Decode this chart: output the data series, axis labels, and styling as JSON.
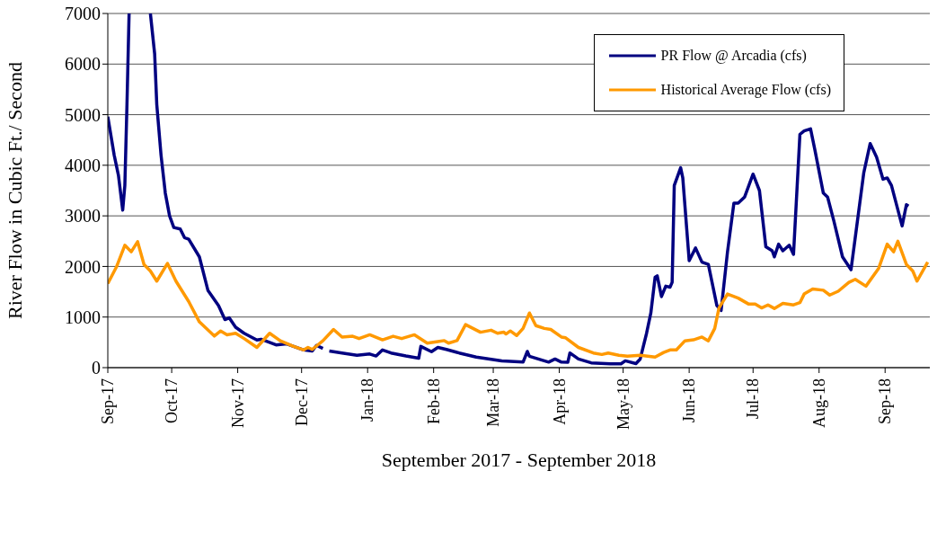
{
  "chart_data": {
    "type": "line",
    "xlabel": "September 2017 - September 2018",
    "ylabel": "River Flow in Cubic Ft./ Second",
    "xlim": [
      "2017-09-01",
      "2018-09-22"
    ],
    "xticks": [
      {
        "value": "2017-09-01",
        "label": "Sep-17"
      },
      {
        "value": "2017-10-01",
        "label": "Oct-17"
      },
      {
        "value": "2017-11-01",
        "label": "Nov-17"
      },
      {
        "value": "2017-12-01",
        "label": "Dec-17"
      },
      {
        "value": "2018-01-01",
        "label": "Jan-18"
      },
      {
        "value": "2018-02-01",
        "label": "Feb-18"
      },
      {
        "value": "2018-03-01",
        "label": "Mar-18"
      },
      {
        "value": "2018-04-01",
        "label": "Apr-18"
      },
      {
        "value": "2018-05-01",
        "label": "May-18"
      },
      {
        "value": "2018-06-01",
        "label": "Jun-18"
      },
      {
        "value": "2018-07-01",
        "label": "Jul-18"
      },
      {
        "value": "2018-08-01",
        "label": "Aug-18"
      },
      {
        "value": "2018-09-01",
        "label": "Sep-18"
      }
    ],
    "ylim": [
      0,
      7000
    ],
    "yticks": [
      0,
      1000,
      2000,
      3000,
      4000,
      5000,
      6000,
      7000
    ],
    "grid": "y",
    "legend": "top right",
    "marker": "none",
    "line_style": "solid",
    "series": [
      {
        "name": "PR Flow @ Arcadia (cfs)",
        "color": "#000080",
        "x": [
          "2017-09-01",
          "2017-09-04",
          "2017-09-06",
          "2017-09-08",
          "2017-09-09",
          "2017-09-10",
          "2017-09-11",
          "2017-09-12",
          "2017-09-21",
          "2017-09-23",
          "2017-09-24",
          "2017-09-26",
          "2017-09-28",
          "2017-09-30",
          "2017-10-02",
          "2017-10-05",
          "2017-10-07",
          "2017-10-09",
          "2017-10-14",
          "2017-10-18",
          "2017-10-23",
          "2017-10-26",
          "2017-10-28",
          "2017-10-31",
          "2017-11-04",
          "2017-11-10",
          "2017-11-12",
          "2017-11-19",
          "2017-11-24",
          "2017-12-02",
          "2017-12-06",
          "2017-12-08",
          "2017-12-11",
          "2017-12-13",
          "2017-12-14",
          "2017-12-20",
          "2017-12-27",
          "2018-01-02",
          "2018-01-05",
          "2018-01-08",
          "2018-01-12",
          "2018-01-19",
          "2018-01-25",
          "2018-01-26",
          "2018-01-31",
          "2018-02-03",
          "2018-02-07",
          "2018-02-13",
          "2018-02-21",
          "2018-03-05",
          "2018-03-15",
          "2018-03-17",
          "2018-03-18",
          "2018-03-27",
          "2018-03-30",
          "2018-04-02",
          "2018-04-05",
          "2018-04-06",
          "2018-04-10",
          "2018-04-16",
          "2018-04-25",
          "2018-04-30",
          "2018-05-02",
          "2018-05-07",
          "2018-05-09",
          "2018-05-12",
          "2018-05-14",
          "2018-05-16",
          "2018-05-17",
          "2018-05-19",
          "2018-05-21",
          "2018-05-23",
          "2018-05-24",
          "2018-05-25",
          "2018-05-28",
          "2018-05-29",
          "2018-06-01",
          "2018-06-04",
          "2018-06-07",
          "2018-06-10",
          "2018-06-14",
          "2018-06-16",
          "2018-06-19",
          "2018-06-22",
          "2018-06-24",
          "2018-06-27",
          "2018-07-01",
          "2018-07-04",
          "2018-07-07",
          "2018-07-10",
          "2018-07-11",
          "2018-07-13",
          "2018-07-15",
          "2018-07-18",
          "2018-07-20",
          "2018-07-23",
          "2018-07-25",
          "2018-07-28",
          "2018-07-30",
          "2018-08-03",
          "2018-08-05",
          "2018-08-08",
          "2018-08-12",
          "2018-08-16",
          "2018-08-22",
          "2018-08-25",
          "2018-08-28",
          "2018-08-31",
          "2018-09-02",
          "2018-09-04",
          "2018-09-09",
          "2018-09-11",
          "2018-09-12"
        ],
        "values": [
          4960,
          4200,
          3800,
          3115,
          3600,
          5200,
          7000,
          null,
          7000,
          6200,
          5200,
          4200,
          3450,
          3000,
          2770,
          2740,
          2570,
          2540,
          2190,
          1530,
          1225,
          950,
          985,
          800,
          680,
          545,
          560,
          450,
          470,
          350,
          330,
          440,
          380,
          null,
          330,
          290,
          245,
          270,
          230,
          350,
          290,
          230,
          185,
          420,
          315,
          400,
          360,
          290,
          210,
          135,
          110,
          320,
          225,
          110,
          170,
          110,
          105,
          290,
          170,
          95,
          75,
          75,
          135,
          80,
          170,
          680,
          1080,
          1785,
          1815,
          1405,
          1610,
          1590,
          1685,
          3600,
          3950,
          3750,
          2115,
          2365,
          2085,
          2040,
          1230,
          1130,
          2290,
          3250,
          3250,
          3370,
          3825,
          3500,
          2390,
          2310,
          2190,
          2440,
          2310,
          2420,
          2240,
          4610,
          4680,
          4720,
          4310,
          3450,
          3370,
          2890,
          2190,
          1935,
          3855,
          4430,
          4160,
          3725,
          3750,
          3600,
          2800,
          3220,
          3195
        ]
      },
      {
        "name": "Historical Average Flow (cfs)",
        "color": "#ff9900",
        "x": [
          "2017-09-01",
          "2017-09-05",
          "2017-09-09",
          "2017-09-12",
          "2017-09-15",
          "2017-09-18",
          "2017-09-21",
          "2017-09-24",
          "2017-09-29",
          "2017-10-03",
          "2017-10-09",
          "2017-10-14",
          "2017-10-21",
          "2017-10-24",
          "2017-10-27",
          "2017-10-31",
          "2017-11-04",
          "2017-11-10",
          "2017-11-16",
          "2017-11-21",
          "2017-11-27",
          "2017-12-02",
          "2017-12-04",
          "2017-12-06",
          "2017-12-11",
          "2017-12-16",
          "2017-12-20",
          "2017-12-25",
          "2017-12-28",
          "2018-01-02",
          "2018-01-08",
          "2018-01-13",
          "2018-01-17",
          "2018-01-23",
          "2018-01-29",
          "2018-02-03",
          "2018-02-06",
          "2018-02-08",
          "2018-02-12",
          "2018-02-16",
          "2018-02-23",
          "2018-02-28",
          "2018-03-03",
          "2018-03-06",
          "2018-03-07",
          "2018-03-09",
          "2018-03-12",
          "2018-03-15",
          "2018-03-18",
          "2018-03-21",
          "2018-03-25",
          "2018-03-28",
          "2018-04-02",
          "2018-04-04",
          "2018-04-10",
          "2018-04-17",
          "2018-04-21",
          "2018-04-24",
          "2018-04-29",
          "2018-05-03",
          "2018-05-09",
          "2018-05-16",
          "2018-05-20",
          "2018-05-23",
          "2018-05-26",
          "2018-05-30",
          "2018-06-03",
          "2018-06-07",
          "2018-06-10",
          "2018-06-13",
          "2018-06-15",
          "2018-06-19",
          "2018-06-24",
          "2018-06-29",
          "2018-07-02",
          "2018-07-05",
          "2018-07-08",
          "2018-07-11",
          "2018-07-15",
          "2018-07-20",
          "2018-07-23",
          "2018-07-25",
          "2018-07-29",
          "2018-08-03",
          "2018-08-06",
          "2018-08-10",
          "2018-08-15",
          "2018-08-18",
          "2018-08-23",
          "2018-08-29",
          "2018-09-02",
          "2018-09-05",
          "2018-09-07",
          "2018-09-11",
          "2018-09-14",
          "2018-09-16",
          "2018-09-21"
        ],
        "values": [
          1660,
          1985,
          2420,
          2290,
          2490,
          2040,
          1910,
          1710,
          2060,
          1710,
          1305,
          905,
          625,
          725,
          650,
          680,
          575,
          400,
          680,
          530,
          425,
          350,
          400,
          360,
          530,
          755,
          605,
          620,
          575,
          650,
          550,
          620,
          575,
          650,
          485,
          515,
          535,
          485,
          535,
          850,
          700,
          740,
          680,
          700,
          665,
          725,
          635,
          775,
          1080,
          830,
          775,
          755,
          605,
          590,
          400,
          290,
          260,
          290,
          245,
          225,
          245,
          210,
          300,
          350,
          350,
          530,
          550,
          605,
          530,
          775,
          1180,
          1455,
          1375,
          1255,
          1255,
          1180,
          1240,
          1170,
          1270,
          1240,
          1285,
          1455,
          1555,
          1530,
          1435,
          1510,
          1685,
          1745,
          1610,
          1965,
          2440,
          2290,
          2500,
          2040,
          1910,
          1710,
          2085
        ]
      }
    ]
  }
}
